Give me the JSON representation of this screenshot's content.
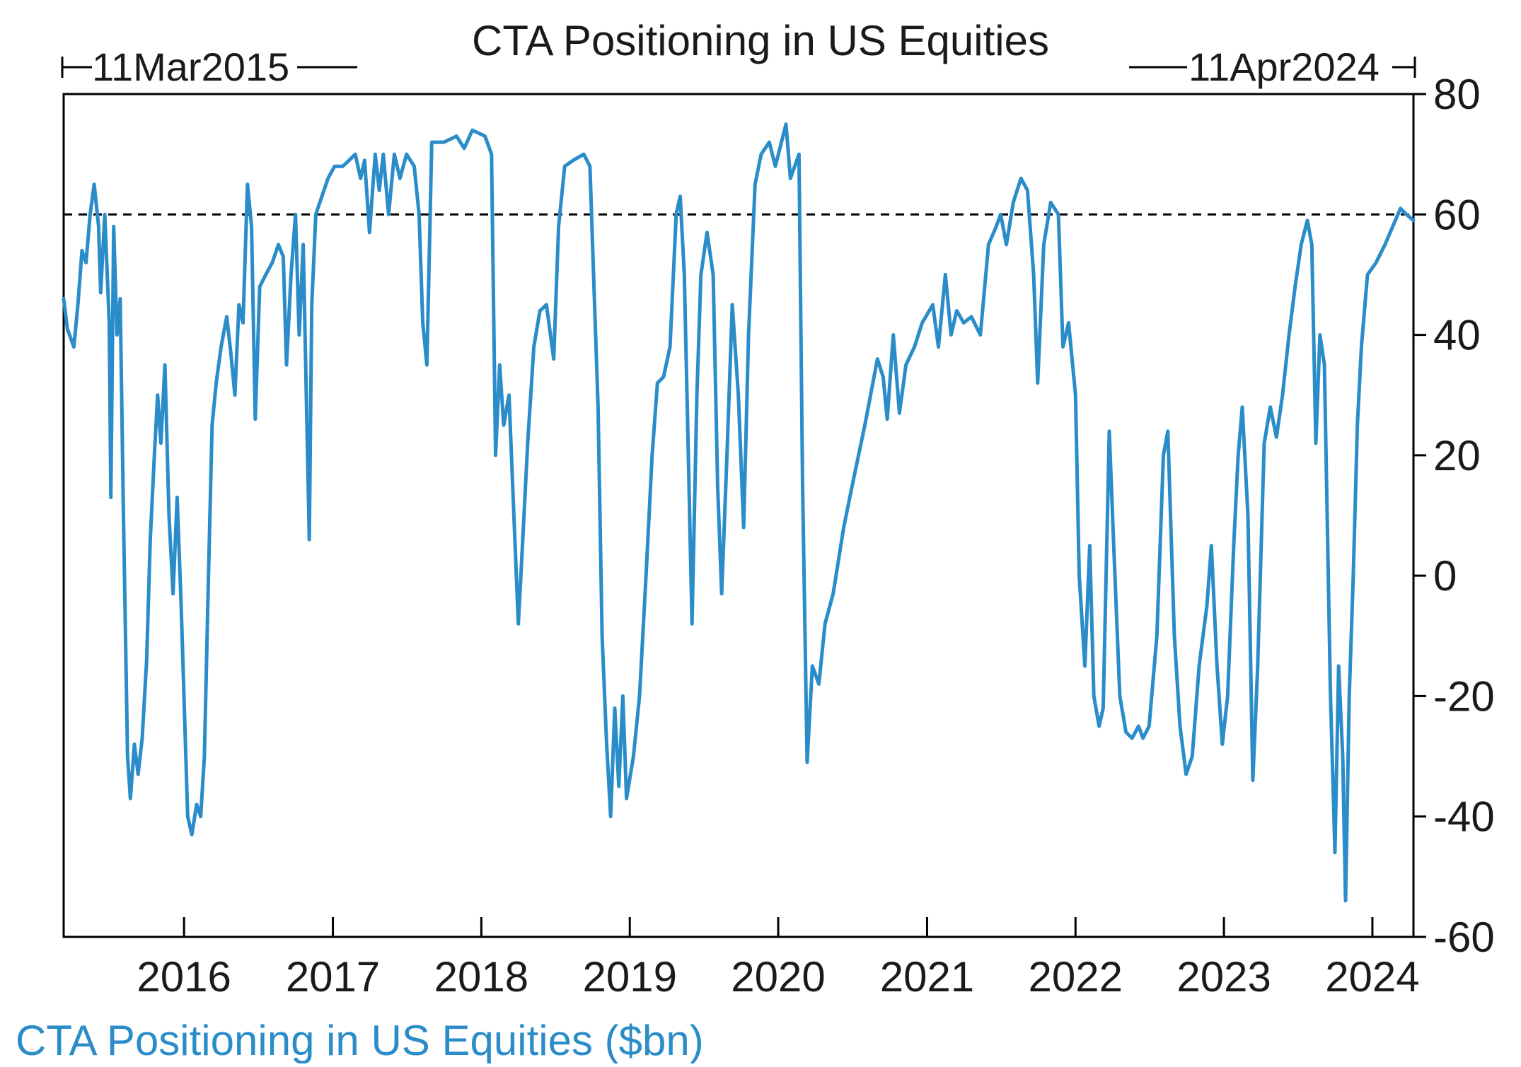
{
  "chart_data": {
    "type": "line",
    "title": "CTA Positioning in US Equities",
    "start_label": "11Mar2015",
    "end_label": "11Apr2024",
    "xlabel": "",
    "ylabel": "",
    "x_ticks": [
      "2016",
      "2017",
      "2018",
      "2019",
      "2020",
      "2021",
      "2022",
      "2023",
      "2024"
    ],
    "y_ticks": [
      "80",
      "60",
      "40",
      "20",
      "0",
      "-20",
      "-40",
      "-60"
    ],
    "ylim": [
      -60,
      80
    ],
    "y_axis_side": "right",
    "reference_line": {
      "y": 60,
      "style": "dashed",
      "color": "#000000"
    },
    "line_color": "#2a8cc8",
    "grid": false,
    "legend_position": "bottom-left",
    "series": [
      {
        "name": "CTA Positioning in US Equities ($bn)",
        "points": [
          [
            "2015-03-11",
            46
          ],
          [
            "2015-03-20",
            41
          ],
          [
            "2015-04-05",
            38
          ],
          [
            "2015-04-15",
            45
          ],
          [
            "2015-04-25",
            54
          ],
          [
            "2015-05-05",
            52
          ],
          [
            "2015-05-15",
            60
          ],
          [
            "2015-05-25",
            65
          ],
          [
            "2015-06-05",
            58
          ],
          [
            "2015-06-10",
            47
          ],
          [
            "2015-06-20",
            60
          ],
          [
            "2015-07-01",
            42
          ],
          [
            "2015-07-05",
            13
          ],
          [
            "2015-07-12",
            58
          ],
          [
            "2015-07-20",
            40
          ],
          [
            "2015-07-28",
            46
          ],
          [
            "2015-08-05",
            10
          ],
          [
            "2015-08-15",
            -30
          ],
          [
            "2015-08-22",
            -37
          ],
          [
            "2015-09-01",
            -28
          ],
          [
            "2015-09-10",
            -33
          ],
          [
            "2015-09-20",
            -27
          ],
          [
            "2015-10-01",
            -14
          ],
          [
            "2015-10-10",
            6
          ],
          [
            "2015-10-20",
            20
          ],
          [
            "2015-10-28",
            30
          ],
          [
            "2015-11-05",
            22
          ],
          [
            "2015-11-15",
            35
          ],
          [
            "2015-11-25",
            10
          ],
          [
            "2015-12-05",
            -3
          ],
          [
            "2015-12-15",
            13
          ],
          [
            "2015-12-25",
            -5
          ],
          [
            "2016-01-10",
            -40
          ],
          [
            "2016-01-20",
            -43
          ],
          [
            "2016-02-01",
            -38
          ],
          [
            "2016-02-11",
            -40
          ],
          [
            "2016-02-20",
            -30
          ],
          [
            "2016-03-01",
            0
          ],
          [
            "2016-03-10",
            25
          ],
          [
            "2016-03-20",
            32
          ],
          [
            "2016-04-01",
            38
          ],
          [
            "2016-04-15",
            43
          ],
          [
            "2016-04-25",
            37
          ],
          [
            "2016-05-05",
            30
          ],
          [
            "2016-05-15",
            45
          ],
          [
            "2016-05-25",
            42
          ],
          [
            "2016-06-05",
            65
          ],
          [
            "2016-06-15",
            58
          ],
          [
            "2016-06-24",
            26
          ],
          [
            "2016-07-05",
            48
          ],
          [
            "2016-07-20",
            50
          ],
          [
            "2016-08-05",
            52
          ],
          [
            "2016-08-20",
            55
          ],
          [
            "2016-09-01",
            53
          ],
          [
            "2016-09-09",
            35
          ],
          [
            "2016-09-20",
            50
          ],
          [
            "2016-10-01",
            60
          ],
          [
            "2016-10-10",
            40
          ],
          [
            "2016-10-20",
            55
          ],
          [
            "2016-11-04",
            6
          ],
          [
            "2016-11-10",
            45
          ],
          [
            "2016-11-20",
            60
          ],
          [
            "2016-12-05",
            63
          ],
          [
            "2016-12-20",
            66
          ],
          [
            "2017-01-05",
            68
          ],
          [
            "2017-01-25",
            68
          ],
          [
            "2017-02-10",
            69
          ],
          [
            "2017-02-25",
            70
          ],
          [
            "2017-03-10",
            66
          ],
          [
            "2017-03-20",
            69
          ],
          [
            "2017-04-01",
            57
          ],
          [
            "2017-04-15",
            70
          ],
          [
            "2017-04-25",
            64
          ],
          [
            "2017-05-05",
            70
          ],
          [
            "2017-05-18",
            60
          ],
          [
            "2017-06-01",
            70
          ],
          [
            "2017-06-15",
            66
          ],
          [
            "2017-07-01",
            70
          ],
          [
            "2017-07-20",
            68
          ],
          [
            "2017-08-01",
            60
          ],
          [
            "2017-08-10",
            42
          ],
          [
            "2017-08-20",
            35
          ],
          [
            "2017-09-01",
            72
          ],
          [
            "2017-10-01",
            72
          ],
          [
            "2017-11-01",
            73
          ],
          [
            "2017-11-20",
            71
          ],
          [
            "2017-12-10",
            74
          ],
          [
            "2018-01-10",
            73
          ],
          [
            "2018-01-26",
            70
          ],
          [
            "2018-02-05",
            20
          ],
          [
            "2018-02-15",
            35
          ],
          [
            "2018-02-25",
            25
          ],
          [
            "2018-03-10",
            30
          ],
          [
            "2018-03-22",
            10
          ],
          [
            "2018-04-02",
            -8
          ],
          [
            "2018-04-12",
            5
          ],
          [
            "2018-04-25",
            22
          ],
          [
            "2018-05-10",
            38
          ],
          [
            "2018-05-25",
            44
          ],
          [
            "2018-06-10",
            45
          ],
          [
            "2018-06-28",
            36
          ],
          [
            "2018-07-10",
            58
          ],
          [
            "2018-07-25",
            68
          ],
          [
            "2018-08-15",
            69
          ],
          [
            "2018-09-10",
            70
          ],
          [
            "2018-09-25",
            68
          ],
          [
            "2018-10-05",
            48
          ],
          [
            "2018-10-15",
            28
          ],
          [
            "2018-10-25",
            -10
          ],
          [
            "2018-11-05",
            -28
          ],
          [
            "2018-11-15",
            -40
          ],
          [
            "2018-11-25",
            -22
          ],
          [
            "2018-12-05",
            -35
          ],
          [
            "2018-12-15",
            -20
          ],
          [
            "2018-12-24",
            -37
          ],
          [
            "2019-01-10",
            -30
          ],
          [
            "2019-01-25",
            -20
          ],
          [
            "2019-02-10",
            0
          ],
          [
            "2019-02-25",
            20
          ],
          [
            "2019-03-10",
            32
          ],
          [
            "2019-03-25",
            33
          ],
          [
            "2019-04-10",
            38
          ],
          [
            "2019-04-25",
            60
          ],
          [
            "2019-05-05",
            63
          ],
          [
            "2019-05-15",
            50
          ],
          [
            "2019-05-25",
            20
          ],
          [
            "2019-06-03",
            -8
          ],
          [
            "2019-06-15",
            30
          ],
          [
            "2019-06-25",
            50
          ],
          [
            "2019-07-10",
            57
          ],
          [
            "2019-07-25",
            50
          ],
          [
            "2019-08-05",
            15
          ],
          [
            "2019-08-15",
            -3
          ],
          [
            "2019-08-28",
            20
          ],
          [
            "2019-09-10",
            45
          ],
          [
            "2019-09-25",
            30
          ],
          [
            "2019-10-08",
            8
          ],
          [
            "2019-10-20",
            40
          ],
          [
            "2019-11-05",
            65
          ],
          [
            "2019-11-20",
            70
          ],
          [
            "2019-12-10",
            72
          ],
          [
            "2019-12-25",
            68
          ],
          [
            "2020-01-20",
            75
          ],
          [
            "2020-01-31",
            66
          ],
          [
            "2020-02-21",
            70
          ],
          [
            "2020-03-01",
            15
          ],
          [
            "2020-03-12",
            -31
          ],
          [
            "2020-03-25",
            -15
          ],
          [
            "2020-04-10",
            -18
          ],
          [
            "2020-04-25",
            -8
          ],
          [
            "2020-05-15",
            -3
          ],
          [
            "2020-06-10",
            8
          ],
          [
            "2020-07-01",
            15
          ],
          [
            "2020-08-01",
            25
          ],
          [
            "2020-09-01",
            36
          ],
          [
            "2020-09-15",
            33
          ],
          [
            "2020-09-25",
            26
          ],
          [
            "2020-10-10",
            40
          ],
          [
            "2020-10-25",
            27
          ],
          [
            "2020-11-10",
            35
          ],
          [
            "2020-12-01",
            38
          ],
          [
            "2020-12-20",
            42
          ],
          [
            "2021-01-15",
            45
          ],
          [
            "2021-01-29",
            38
          ],
          [
            "2021-02-15",
            50
          ],
          [
            "2021-03-01",
            40
          ],
          [
            "2021-03-15",
            44
          ],
          [
            "2021-04-01",
            42
          ],
          [
            "2021-04-20",
            43
          ],
          [
            "2021-05-12",
            40
          ],
          [
            "2021-06-01",
            55
          ],
          [
            "2021-06-20",
            58
          ],
          [
            "2021-07-01",
            60
          ],
          [
            "2021-07-15",
            55
          ],
          [
            "2021-08-01",
            62
          ],
          [
            "2021-08-20",
            66
          ],
          [
            "2021-09-05",
            64
          ],
          [
            "2021-09-20",
            50
          ],
          [
            "2021-09-30",
            32
          ],
          [
            "2021-10-15",
            55
          ],
          [
            "2021-11-01",
            62
          ],
          [
            "2021-11-20",
            60
          ],
          [
            "2021-12-01",
            38
          ],
          [
            "2021-12-15",
            42
          ],
          [
            "2022-01-01",
            30
          ],
          [
            "2022-01-10",
            0
          ],
          [
            "2022-01-24",
            -15
          ],
          [
            "2022-02-05",
            5
          ],
          [
            "2022-02-15",
            -20
          ],
          [
            "2022-02-28",
            -25
          ],
          [
            "2022-03-10",
            -22
          ],
          [
            "2022-03-25",
            24
          ],
          [
            "2022-04-05",
            5
          ],
          [
            "2022-04-20",
            -20
          ],
          [
            "2022-05-05",
            -26
          ],
          [
            "2022-05-20",
            -27
          ],
          [
            "2022-06-05",
            -25
          ],
          [
            "2022-06-16",
            -27
          ],
          [
            "2022-07-01",
            -25
          ],
          [
            "2022-07-20",
            -10
          ],
          [
            "2022-08-05",
            20
          ],
          [
            "2022-08-16",
            24
          ],
          [
            "2022-09-01",
            -10
          ],
          [
            "2022-09-15",
            -25
          ],
          [
            "2022-09-30",
            -33
          ],
          [
            "2022-10-15",
            -30
          ],
          [
            "2022-11-01",
            -15
          ],
          [
            "2022-11-20",
            -5
          ],
          [
            "2022-12-01",
            5
          ],
          [
            "2022-12-15",
            -15
          ],
          [
            "2022-12-28",
            -28
          ],
          [
            "2023-01-10",
            -20
          ],
          [
            "2023-01-25",
            5
          ],
          [
            "2023-02-05",
            20
          ],
          [
            "2023-02-15",
            28
          ],
          [
            "2023-03-01",
            10
          ],
          [
            "2023-03-13",
            -34
          ],
          [
            "2023-03-25",
            -15
          ],
          [
            "2023-04-10",
            22
          ],
          [
            "2023-04-25",
            28
          ],
          [
            "2023-05-10",
            23
          ],
          [
            "2023-05-25",
            30
          ],
          [
            "2023-06-10",
            40
          ],
          [
            "2023-06-25",
            48
          ],
          [
            "2023-07-10",
            55
          ],
          [
            "2023-07-25",
            59
          ],
          [
            "2023-08-05",
            55
          ],
          [
            "2023-08-15",
            22
          ],
          [
            "2023-08-25",
            40
          ],
          [
            "2023-09-05",
            35
          ],
          [
            "2023-09-20",
            -20
          ],
          [
            "2023-10-01",
            -46
          ],
          [
            "2023-10-10",
            -15
          ],
          [
            "2023-10-20",
            -30
          ],
          [
            "2023-10-27",
            -54
          ],
          [
            "2023-11-05",
            -20
          ],
          [
            "2023-11-15",
            0
          ],
          [
            "2023-11-25",
            25
          ],
          [
            "2023-12-05",
            38
          ],
          [
            "2023-12-20",
            50
          ],
          [
            "2024-01-10",
            52
          ],
          [
            "2024-02-01",
            55
          ],
          [
            "2024-02-20",
            58
          ],
          [
            "2024-03-10",
            61
          ],
          [
            "2024-03-25",
            60
          ],
          [
            "2024-04-11",
            59
          ]
        ]
      }
    ]
  }
}
